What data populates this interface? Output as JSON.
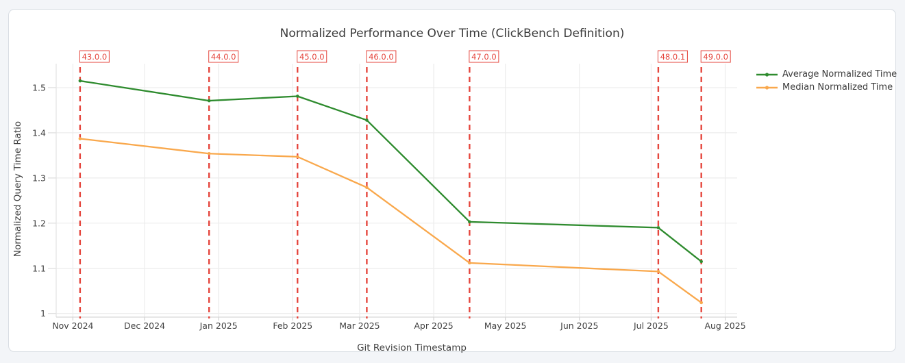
{
  "page": {
    "background": "#f3f5f8",
    "card": {
      "background": "#ffffff",
      "border": "#d8dde3"
    }
  },
  "chart_data": {
    "type": "line",
    "title": "Normalized Performance Over Time (ClickBench Definition)",
    "xlabel": "Git Revision Timestamp",
    "ylabel": "Normalized Query Time Ratio",
    "x": [
      "2024-11-04",
      "2024-12-28",
      "2025-02-03",
      "2025-03-04",
      "2025-04-16",
      "2025-07-04",
      "2025-07-22"
    ],
    "series": [
      {
        "name": "Average Normalized Time",
        "color": "#2e8b2e",
        "values": [
          1.515,
          1.471,
          1.481,
          1.428,
          1.203,
          1.19,
          1.115
        ]
      },
      {
        "name": "Median Normalized Time",
        "color": "#f9a84c",
        "values": [
          1.387,
          1.354,
          1.347,
          1.279,
          1.112,
          1.093,
          1.024
        ]
      }
    ],
    "annotations": {
      "versions": [
        "43.0.0",
        "44.0.0",
        "45.0.0",
        "46.0.0",
        "47.0.0",
        "48.0.1",
        "49.0.0"
      ],
      "color": "#e5463d",
      "line_style": "dashed"
    },
    "x_ticks": [
      {
        "label": "Nov 2024",
        "date": "2024-11-01"
      },
      {
        "label": "Dec 2024",
        "date": "2024-12-01"
      },
      {
        "label": "Jan 2025",
        "date": "2025-01-01"
      },
      {
        "label": "Feb 2025",
        "date": "2025-02-01"
      },
      {
        "label": "Mar 2025",
        "date": "2025-03-01"
      },
      {
        "label": "Apr 2025",
        "date": "2025-04-01"
      },
      {
        "label": "May 2025",
        "date": "2025-05-01"
      },
      {
        "label": "Jun 2025",
        "date": "2025-06-01"
      },
      {
        "label": "Jul 2025",
        "date": "2025-07-01"
      },
      {
        "label": "Aug 2025",
        "date": "2025-08-01"
      }
    ],
    "y_ticks": [
      {
        "label": "1",
        "value": 1.0
      },
      {
        "label": "1.1",
        "value": 1.1
      },
      {
        "label": "1.2",
        "value": 1.2
      },
      {
        "label": "1.3",
        "value": 1.3
      },
      {
        "label": "1.4",
        "value": 1.4
      },
      {
        "label": "1.5",
        "value": 1.5
      }
    ],
    "x_range": [
      "2024-10-25",
      "2025-08-06"
    ],
    "y_range": [
      0.992,
      1.553
    ],
    "grid": true,
    "legend_position": "right-outside-top"
  }
}
